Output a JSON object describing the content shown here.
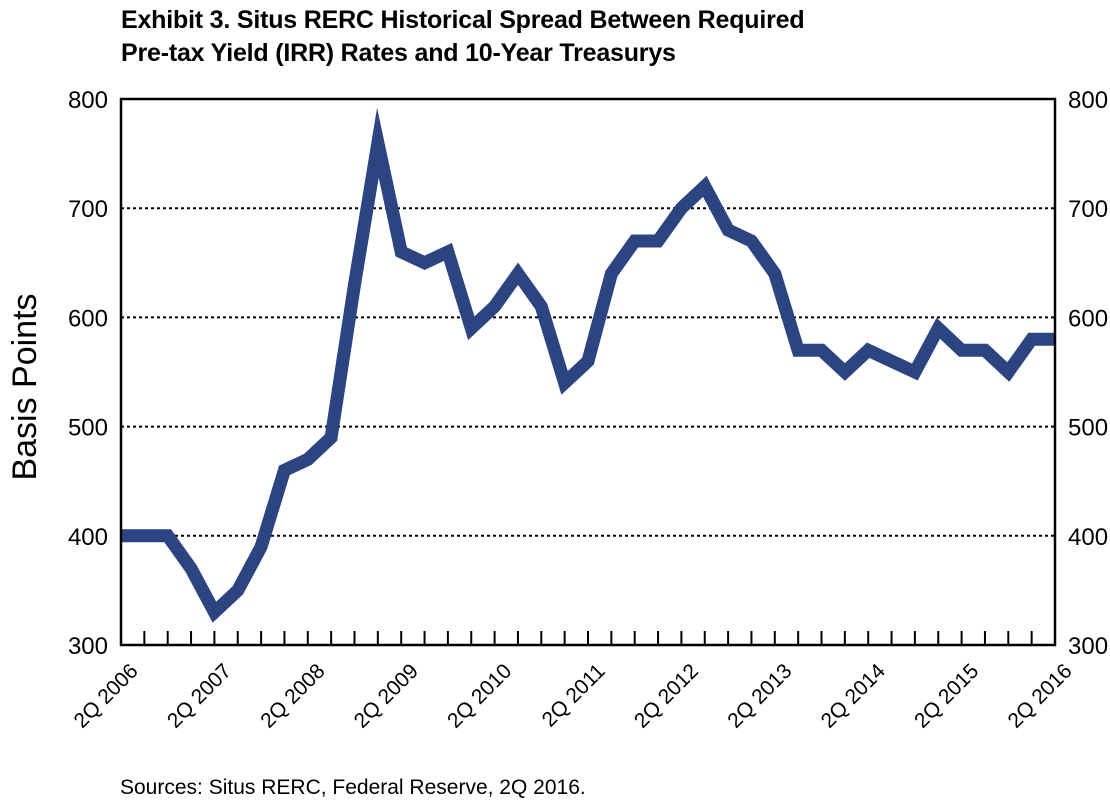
{
  "title_lines": [
    "Exhibit 3. Situs RERC Historical Spread Between Required",
    "Pre-tax Yield (IRR) Rates and 10-Year Treasurys"
  ],
  "source": "Sources: Situs RERC, Federal Reserve, 2Q 2016.",
  "colors": {
    "line": "#2c4581",
    "grid": "#000000",
    "axis": "#000000"
  },
  "chart_data": {
    "type": "line",
    "title": "Exhibit 3. Situs RERC Historical Spread Between Required Pre-tax Yield (IRR) Rates and 10-Year Treasurys",
    "xlabel": "",
    "ylabel": "Basis Points",
    "ylim": [
      300,
      800
    ],
    "yticks": [
      300,
      400,
      500,
      600,
      700,
      800
    ],
    "secondary_yticks": [
      300,
      400,
      500,
      600,
      700,
      800
    ],
    "grid": "horizontal dotted",
    "legend": "none",
    "x_tick_labels": [
      "2Q 2006",
      "2Q 2007",
      "2Q 2008",
      "2Q 2009",
      "2Q 2010",
      "2Q 2011",
      "2Q 2012",
      "2Q 2013",
      "2Q 2014",
      "2Q 2015",
      "2Q 2016"
    ],
    "x": [
      "2Q 2006",
      "3Q 2006",
      "4Q 2006",
      "1Q 2007",
      "2Q 2007",
      "3Q 2007",
      "4Q 2007",
      "1Q 2008",
      "2Q 2008",
      "3Q 2008",
      "4Q 2008",
      "1Q 2009",
      "2Q 2009",
      "3Q 2009",
      "4Q 2009",
      "1Q 2010",
      "2Q 2010",
      "3Q 2010",
      "4Q 2010",
      "1Q 2011",
      "2Q 2011",
      "3Q 2011",
      "4Q 2011",
      "1Q 2012",
      "2Q 2012",
      "3Q 2012",
      "4Q 2012",
      "1Q 2013",
      "2Q 2013",
      "3Q 2013",
      "4Q 2013",
      "1Q 2014",
      "2Q 2014",
      "3Q 2014",
      "4Q 2014",
      "1Q 2015",
      "2Q 2015",
      "3Q 2015",
      "4Q 2015",
      "1Q 2016",
      "2Q 2016"
    ],
    "values": [
      400,
      400,
      400,
      370,
      330,
      350,
      390,
      460,
      470,
      490,
      630,
      760,
      660,
      650,
      660,
      590,
      610,
      640,
      610,
      540,
      560,
      640,
      670,
      670,
      700,
      720,
      680,
      670,
      640,
      570,
      570,
      550,
      570,
      560,
      550,
      590,
      570,
      570,
      550,
      580,
      580
    ]
  }
}
